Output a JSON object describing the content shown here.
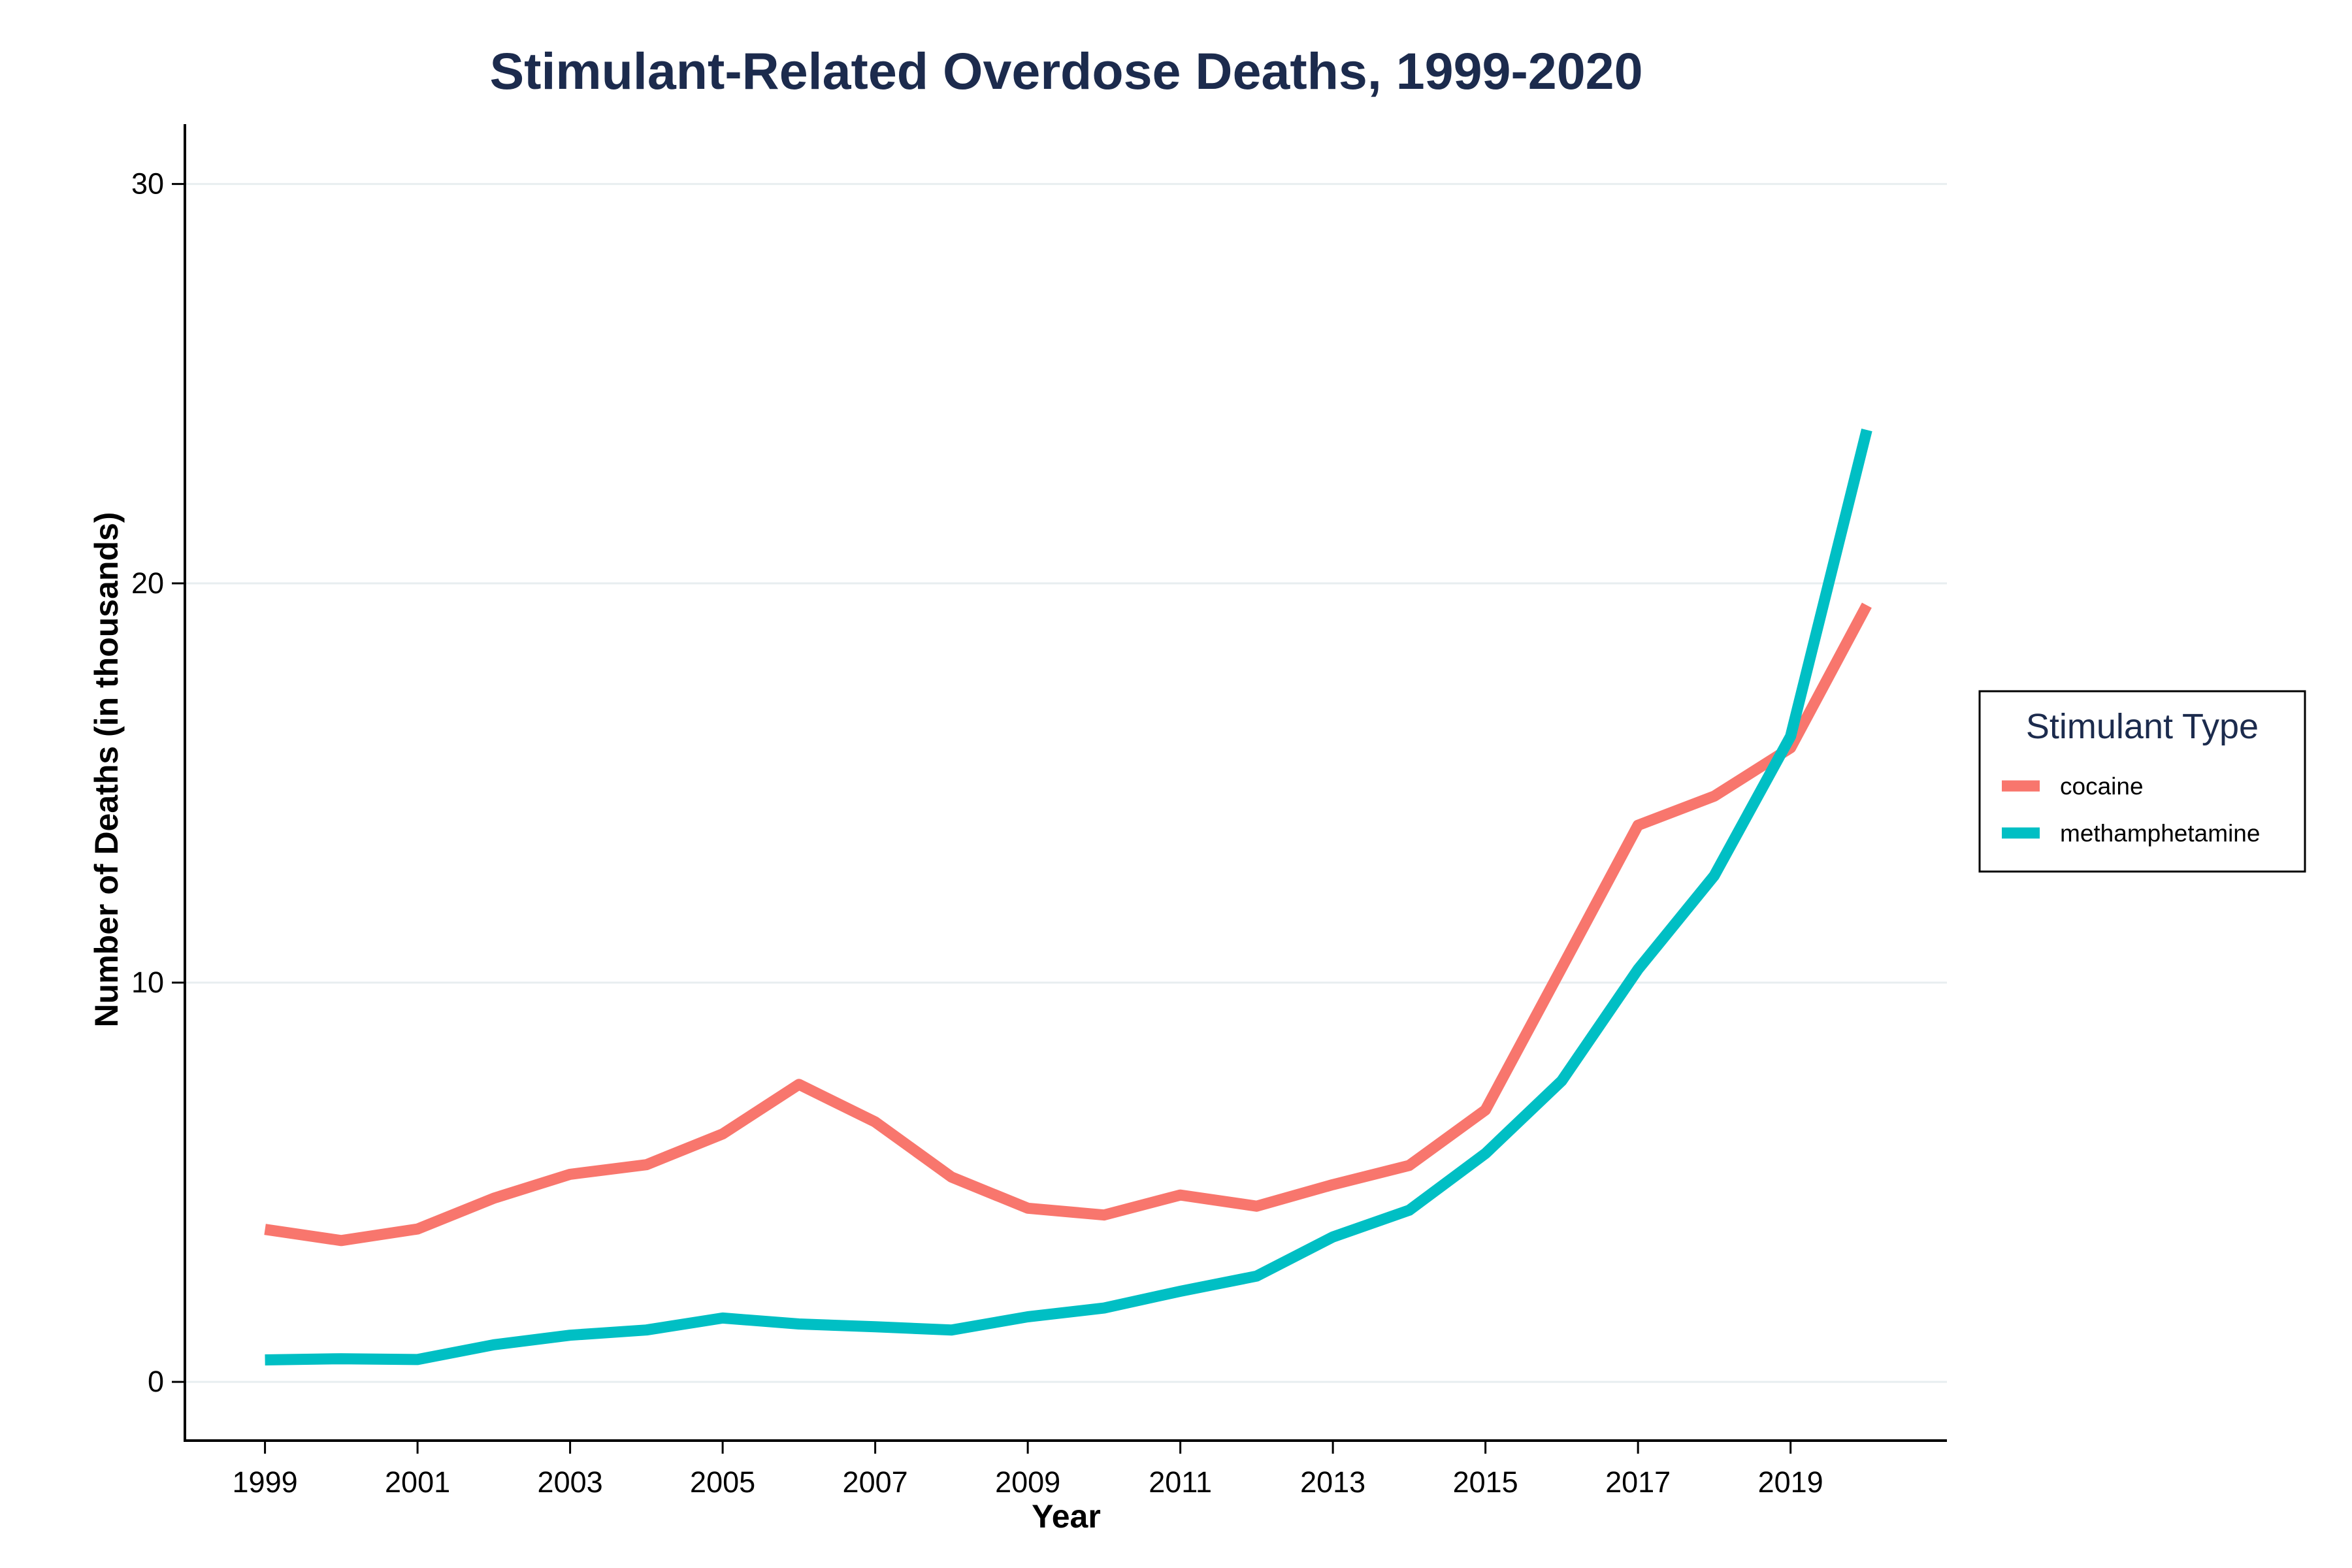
{
  "chart_data": {
    "type": "line",
    "title": "Stimulant-Related Overdose Deaths, 1999-2020",
    "xlabel": "Year",
    "ylabel": "Number of Deaths (in thousands)",
    "x": [
      1999,
      2000,
      2001,
      2002,
      2003,
      2004,
      2005,
      2006,
      2007,
      2008,
      2009,
      2010,
      2011,
      2012,
      2013,
      2014,
      2015,
      2016,
      2017,
      2018,
      2019,
      2020
    ],
    "xticks": [
      "1999",
      "2001",
      "2003",
      "2005",
      "2007",
      "2009",
      "2011",
      "2013",
      "2015",
      "2017",
      "2019"
    ],
    "yticks": [
      "0",
      "10",
      "20",
      "30"
    ],
    "xlim": [
      1997.95,
      2021.05
    ],
    "ylim": [
      -1.47,
      31.5
    ],
    "grid": "horizontal",
    "legend_title": "Stimulant Type",
    "legend_position": "right",
    "series": [
      {
        "name": "cocaine",
        "color": "#f8766d",
        "values": [
          3.82,
          3.54,
          3.83,
          4.6,
          5.2,
          5.44,
          6.21,
          7.45,
          6.51,
          5.13,
          4.35,
          4.18,
          4.68,
          4.4,
          4.94,
          5.42,
          6.81,
          10.37,
          13.94,
          14.67,
          15.88,
          19.45
        ]
      },
      {
        "name": "methamphetamine",
        "color": "#00bfc4",
        "values": [
          0.55,
          0.58,
          0.56,
          0.93,
          1.17,
          1.3,
          1.6,
          1.45,
          1.38,
          1.3,
          1.63,
          1.85,
          2.27,
          2.65,
          3.63,
          4.3,
          5.72,
          7.54,
          10.33,
          12.68,
          16.17,
          23.84
        ]
      }
    ]
  }
}
